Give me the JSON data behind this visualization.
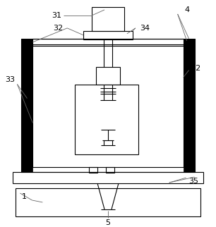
{
  "fig_width": 3.06,
  "fig_height": 3.22,
  "dpi": 100,
  "bg_color": "#ffffff",
  "line_color": "#000000",
  "lw": 0.8,
  "lw_thick": 3.5,
  "lw_leader": 0.6,
  "leader_color": "#666666"
}
